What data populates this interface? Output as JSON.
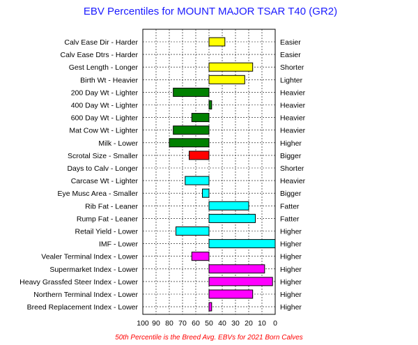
{
  "chart_data": {
    "type": "bar",
    "title": "EBV Percentiles for MOUNT MAJOR TSAR T40 (GR2)",
    "footnote": "50th Percentile is the Breed Avg. EBVs for 2021 Born Calves",
    "xlim": [
      100,
      0
    ],
    "baseline": 50,
    "x_ticks": [
      100,
      90,
      80,
      70,
      60,
      50,
      40,
      30,
      20,
      10,
      0
    ],
    "grid": true,
    "categories": [
      "Calv Ease Dir - Harder",
      "Calv Ease Dtrs - Harder",
      "Gest Length - Longer",
      "Birth Wt - Heavier",
      "200 Day Wt - Lighter",
      "400 Day Wt - Lighter",
      "600 Day Wt - Lighter",
      "Mat Cow Wt - Lighter",
      "Milk - Lower",
      "Scrotal Size - Smaller",
      "Days to Calv - Longer",
      "Carcase Wt - Lighter",
      "Eye Musc Area - Smaller",
      "Rib Fat - Leaner",
      "Rump Fat - Leaner",
      "Retail Yield - Lower",
      "IMF - Lower",
      "Vealer Terminal Index - Lower",
      "Supermarket Index - Lower",
      "Heavy Grassfed Steer Index - Lower",
      "Northern Terminal Index - Lower",
      "Breed Replacement Index - Lower"
    ],
    "right_labels": [
      "Easier",
      "Easier",
      "Shorter",
      "Lighter",
      "Heavier",
      "Heavier",
      "Heavier",
      "Heavier",
      "Higher",
      "Bigger",
      "Shorter",
      "Heavier",
      "Bigger",
      "Fatter",
      "Fatter",
      "Higher",
      "Higher",
      "Higher",
      "Higher",
      "Higher",
      "Higher",
      "Higher"
    ],
    "values": [
      38,
      null,
      17,
      23,
      77,
      48,
      63,
      77,
      80,
      65,
      null,
      68,
      55,
      20,
      15,
      75,
      0,
      63,
      8,
      2,
      17,
      48
    ],
    "colors": [
      "#ffff00",
      "#ffff00",
      "#ffff00",
      "#ffff00",
      "#008000",
      "#008000",
      "#008000",
      "#008000",
      "#008000",
      "#ff0000",
      "#ff0000",
      "#00ffff",
      "#00ffff",
      "#00ffff",
      "#00ffff",
      "#00ffff",
      "#00ffff",
      "#ff00ff",
      "#ff00ff",
      "#ff00ff",
      "#ff00ff",
      "#ff00ff"
    ]
  }
}
